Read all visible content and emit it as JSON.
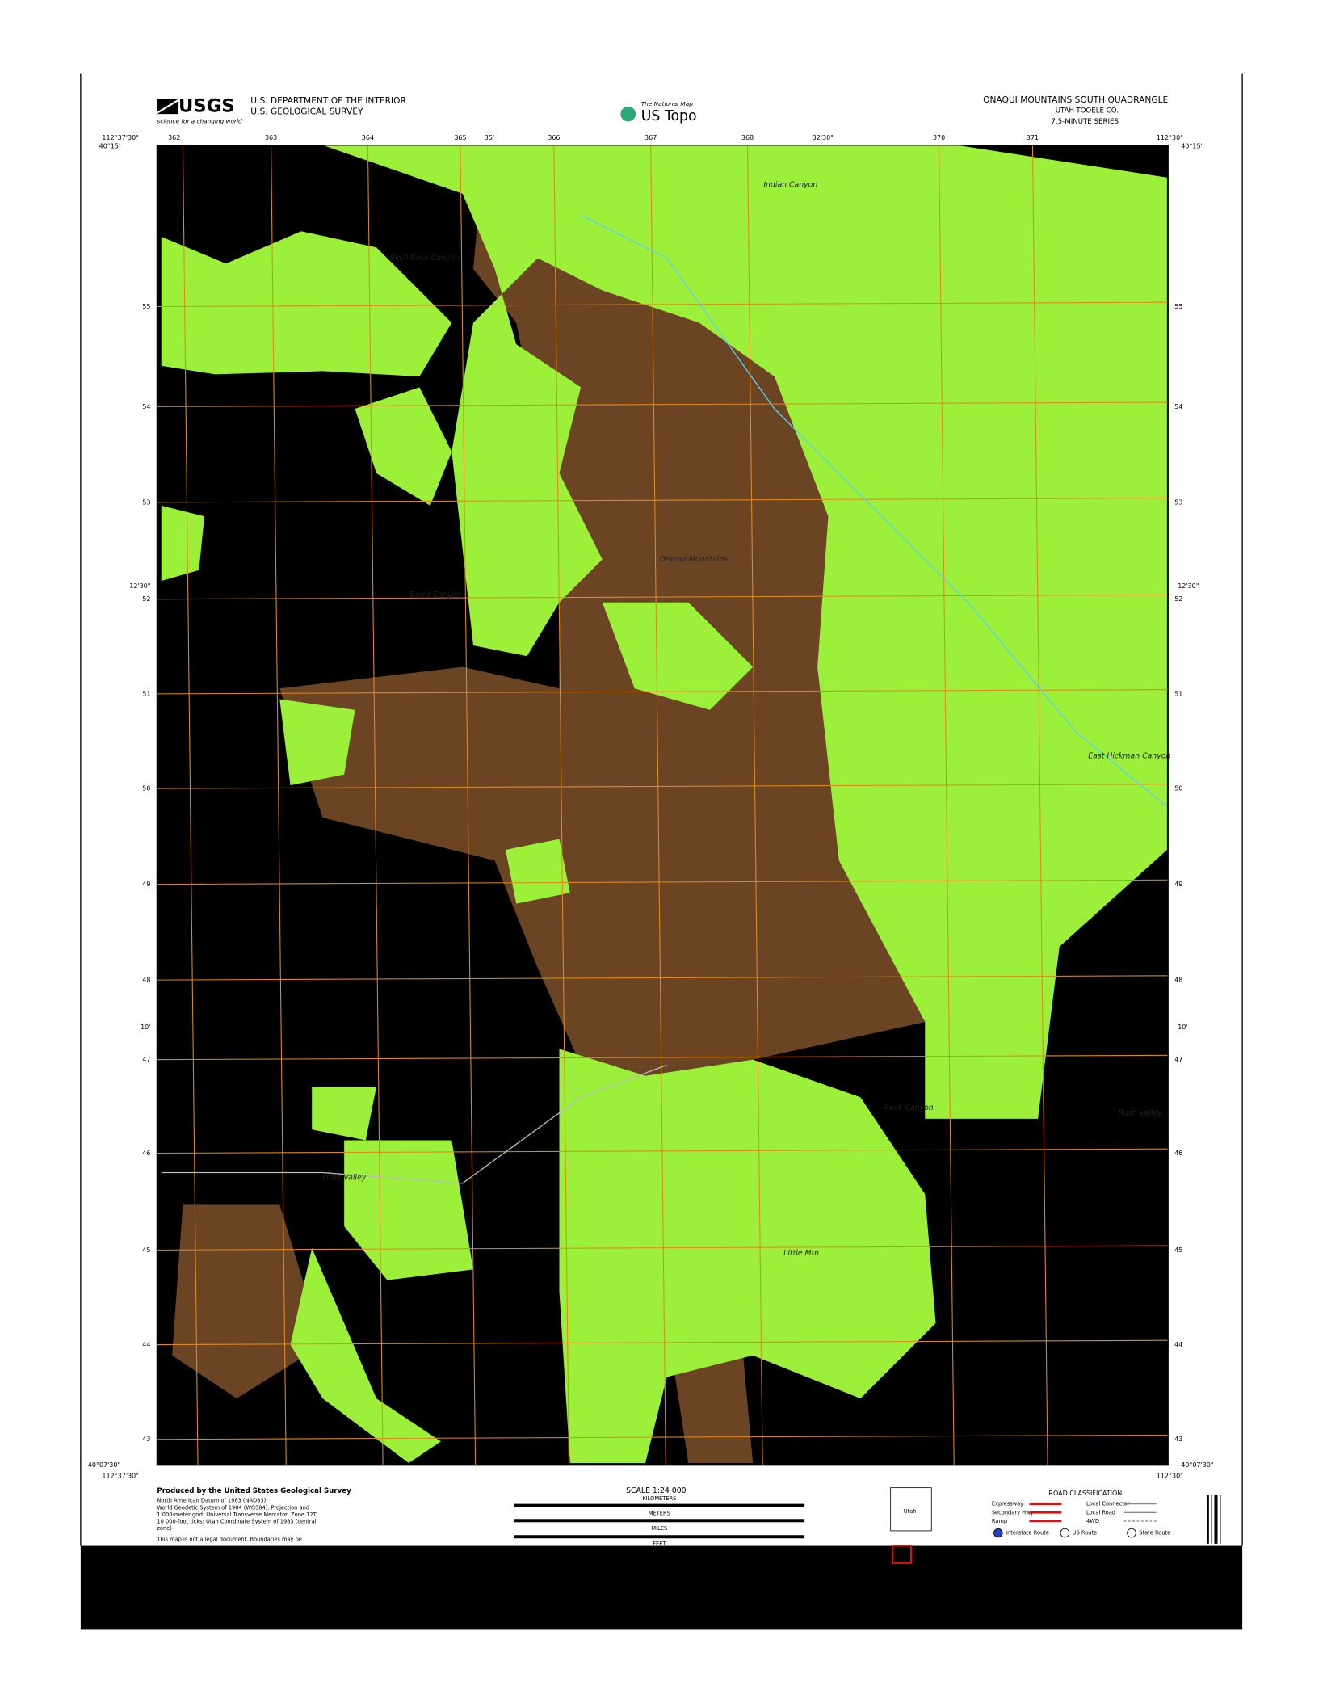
{
  "header": {
    "logo": "USGS",
    "tagline": "science for a changing world",
    "agency": [
      "U.S. DEPARTMENT OF THE INTERIOR",
      "U.S. GEOLOGICAL SURVEY"
    ],
    "brand_small": "The National Map",
    "brand": "US Topo",
    "title": "ONAQUI MOUNTAINS SOUTH QUADRANGLE",
    "subtitle": [
      "UTAH-TOOELE CO.",
      "7.5-MINUTE SERIES"
    ]
  },
  "map": {
    "corners": [
      "112°37'30\"",
      "40°15'",
      "112°30'",
      "40°15'",
      "40°07'30\"",
      "112°37'30\"",
      "40°07'30\"",
      "112°30'"
    ],
    "top_ticks": [
      "362",
      "363",
      "364",
      "365",
      "35'",
      "366",
      "367",
      "368",
      "32'30\"",
      "370",
      "371"
    ],
    "side_ticks": [
      "55",
      "54",
      "53",
      "52",
      "51",
      "50",
      "49",
      "48",
      "47",
      "46",
      "45",
      "44",
      "43"
    ],
    "side_minutes": [
      "12'30\"",
      "10'"
    ],
    "places": [
      "Skull Rock Canyon",
      "Indian Canyon",
      "Onaqui Mountains",
      "Burnt Canyon",
      "Little Mtn",
      "Rock Canyon",
      "Rush Valley",
      "Little Valley",
      "East Hickman Canyon"
    ]
  },
  "footer": {
    "producer": "Produced by the United States Geological Survey",
    "datum": [
      "North American Datum of 1983 (NAD83)",
      "World Geodetic System of 1984 (WGS84). Projection and",
      "1 000-meter grid: Universal Transverse Mercator, Zone 12T",
      "10 000-foot ticks: Utah Coordinate System of 1983 (central",
      "zone)"
    ],
    "disclaimer": "This map is not a legal document. Boundaries may be",
    "scale": "SCALE 1:24 000",
    "units": [
      "KILOMETERS",
      "METERS",
      "MILES",
      "FEET"
    ],
    "state": "Utah",
    "road_title": "ROAD CLASSIFICATION",
    "roads": [
      "Expressway",
      "Secondary Hwy",
      "Ramp",
      "Local Connector",
      "Local Road",
      "4WD"
    ],
    "routes": [
      "Interstate Route",
      "US Route",
      "State Route"
    ]
  }
}
